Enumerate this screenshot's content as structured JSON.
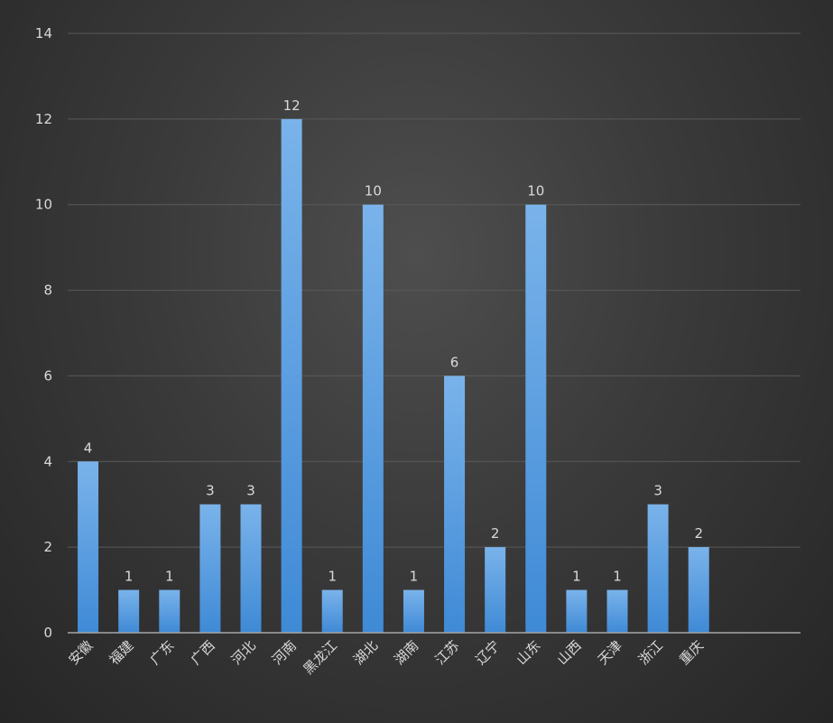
{
  "chart_data": {
    "type": "bar",
    "title": "",
    "xlabel": "",
    "ylabel": "",
    "categories": [
      "安徽",
      "福建",
      "广东",
      "广西",
      "河北",
      "河南",
      "黑龙江",
      "湖北",
      "湖南",
      "江苏",
      "辽宁",
      "山东",
      "山西",
      "天津",
      "浙江",
      "重庆"
    ],
    "values": [
      4,
      1,
      1,
      3,
      3,
      12,
      1,
      10,
      1,
      6,
      2,
      10,
      1,
      1,
      3,
      2
    ],
    "empty_slots_after": 2,
    "ylim": [
      0,
      14
    ],
    "yticks": [
      0,
      2,
      4,
      6,
      8,
      10,
      12,
      14
    ],
    "grid": true,
    "data_labels": true,
    "colors": {
      "bar_top": "#7ab3ea",
      "bar_bottom": "#3f8ad6",
      "grid": "#5a5a5a",
      "axis": "#a6a6a6",
      "text": "#d9d9d9"
    }
  }
}
